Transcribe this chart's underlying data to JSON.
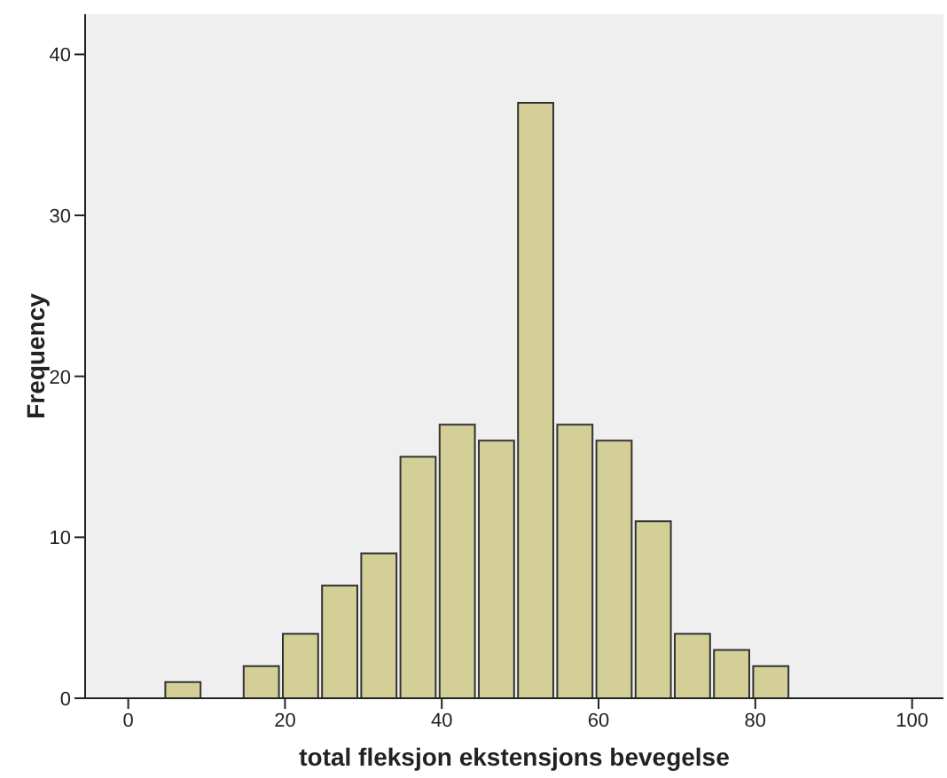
{
  "chart_data": {
    "type": "histogram",
    "xlabel": "total fleksjon ekstensjons bevegelse",
    "ylabel": "Frequency",
    "bins": [
      4.5,
      9.5,
      14.5,
      19.5,
      24.5,
      29.5,
      34.5,
      39.5,
      44.5,
      49.5,
      54.5,
      59.5,
      64.5,
      69.5,
      74.5,
      79.5,
      84.5
    ],
    "values": [
      1,
      0,
      2,
      4,
      7,
      9,
      15,
      17,
      16,
      37,
      17,
      16,
      11,
      4,
      3,
      2
    ],
    "color": "#d3cf97",
    "xlim": [
      -5.5,
      104
    ],
    "xticks": [
      0,
      20,
      40,
      60,
      80,
      100
    ],
    "ylim": [
      0,
      42.5
    ],
    "yticks": [
      0,
      10,
      20,
      30,
      40
    ],
    "grid": false
  }
}
